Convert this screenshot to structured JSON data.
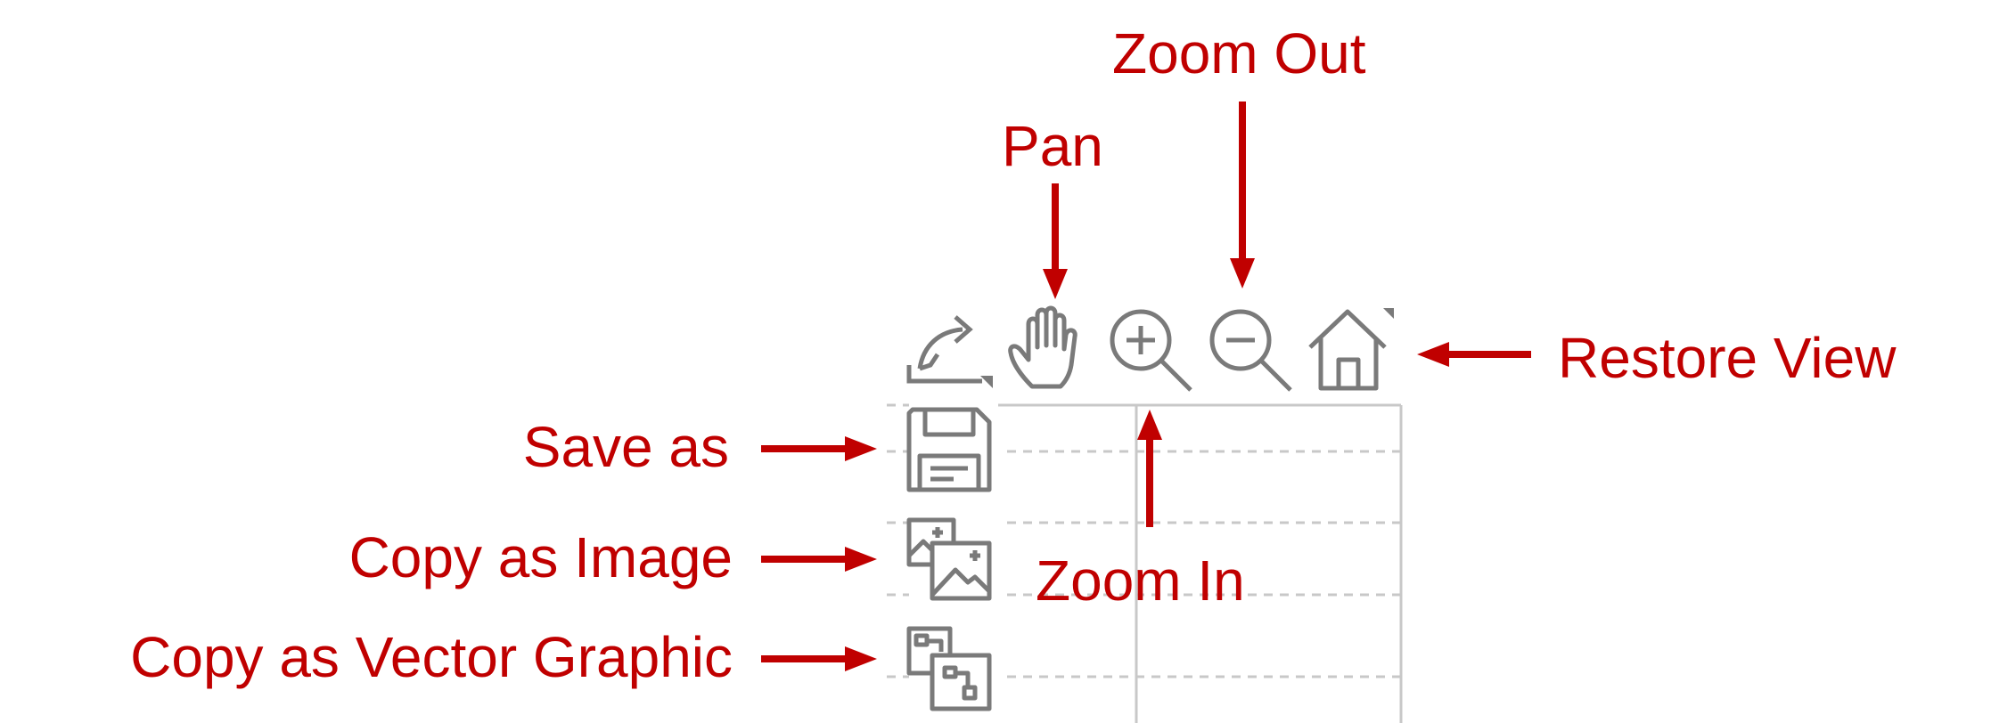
{
  "colors": {
    "callout": "#C00000",
    "icon": "#7a7a7a",
    "grid": "#c8c8c8"
  },
  "callouts": {
    "zoom_out": "Zoom Out",
    "pan": "Pan",
    "restore_view": "Restore View",
    "save_as": "Save as",
    "copy_as_image": "Copy as Image",
    "zoom_in": "Zoom In",
    "copy_as_vector": "Copy as Vector Graphic"
  },
  "toolbar": {
    "icons": [
      "export-icon",
      "pan-hand-icon",
      "zoom-in-icon",
      "zoom-out-icon",
      "home-icon"
    ]
  },
  "side_toolbar": {
    "icons": [
      "save-disk-icon",
      "copy-image-icon",
      "copy-vector-icon"
    ]
  }
}
